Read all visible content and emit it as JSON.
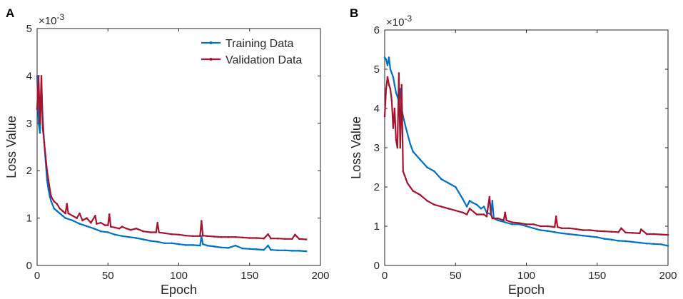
{
  "chart_data": [
    {
      "type": "line",
      "panel_label": "A",
      "xlabel": "Epoch",
      "ylabel": "Loss Value",
      "exponent_label": "×10",
      "exponent_power": "-3",
      "xlim": [
        0,
        200
      ],
      "ylim": [
        0,
        5
      ],
      "xticks": [
        "0",
        "50",
        "100",
        "150",
        "200"
      ],
      "yticks": [
        "0",
        "1",
        "2",
        "3",
        "4",
        "5"
      ],
      "legend": {
        "position": "top-right",
        "entries": [
          "Training Data",
          "Validation Data"
        ]
      },
      "series": [
        {
          "name": "Training Data",
          "color": "#0072BD",
          "x": [
            0,
            1,
            2,
            3,
            4,
            5,
            6,
            7,
            8,
            9,
            10,
            12,
            14,
            16,
            18,
            20,
            25,
            30,
            35,
            40,
            45,
            50,
            55,
            60,
            65,
            70,
            75,
            80,
            85,
            90,
            95,
            100,
            105,
            110,
            115,
            116,
            117,
            120,
            125,
            130,
            135,
            140,
            145,
            150,
            155,
            160,
            163,
            165,
            170,
            175,
            180,
            185,
            190
          ],
          "y": [
            4.0,
            3.0,
            2.8,
            3.8,
            3.1,
            2.6,
            2.2,
            1.8,
            1.6,
            1.45,
            1.35,
            1.2,
            1.15,
            1.1,
            1.05,
            1.0,
            0.95,
            0.88,
            0.83,
            0.78,
            0.72,
            0.7,
            0.65,
            0.62,
            0.6,
            0.58,
            0.55,
            0.52,
            0.5,
            0.47,
            0.47,
            0.45,
            0.43,
            0.43,
            0.42,
            0.62,
            0.45,
            0.42,
            0.4,
            0.38,
            0.37,
            0.42,
            0.36,
            0.35,
            0.34,
            0.33,
            0.42,
            0.33,
            0.32,
            0.32,
            0.31,
            0.31,
            0.3
          ]
        },
        {
          "name": "Validation Data",
          "color": "#A2142F",
          "x": [
            0,
            1,
            2,
            3,
            4,
            5,
            6,
            7,
            8,
            9,
            10,
            12,
            14,
            16,
            18,
            20,
            21,
            22,
            25,
            28,
            30,
            32,
            35,
            38,
            41,
            42,
            45,
            48,
            50,
            51,
            52,
            55,
            58,
            60,
            63,
            66,
            70,
            75,
            80,
            84,
            85,
            86,
            90,
            95,
            100,
            105,
            110,
            115,
            116,
            117,
            120,
            125,
            130,
            135,
            140,
            145,
            150,
            155,
            160,
            163,
            165,
            170,
            175,
            180,
            182,
            185,
            190
          ],
          "y": [
            3.3,
            4.0,
            3.0,
            4.0,
            2.9,
            2.6,
            2.3,
            2.0,
            1.8,
            1.6,
            1.45,
            1.35,
            1.3,
            1.2,
            1.15,
            1.1,
            1.3,
            1.1,
            1.05,
            1.0,
            1.1,
            0.95,
            1.0,
            0.9,
            1.05,
            0.88,
            0.9,
            0.85,
            0.85,
            1.08,
            0.82,
            0.8,
            0.78,
            0.82,
            0.78,
            0.75,
            0.78,
            0.72,
            0.7,
            0.7,
            0.9,
            0.7,
            0.68,
            0.66,
            0.65,
            0.63,
            0.62,
            0.62,
            0.94,
            0.63,
            0.62,
            0.61,
            0.6,
            0.6,
            0.6,
            0.59,
            0.58,
            0.58,
            0.57,
            0.66,
            0.57,
            0.57,
            0.56,
            0.56,
            0.65,
            0.56,
            0.55
          ]
        }
      ]
    },
    {
      "type": "line",
      "panel_label": "B",
      "xlabel": "Epoch",
      "ylabel": "Loss Value",
      "exponent_label": "×10",
      "exponent_power": "-3",
      "xlim": [
        0,
        200
      ],
      "ylim": [
        0,
        6
      ],
      "xticks": [
        "0",
        "50",
        "100",
        "150",
        "200"
      ],
      "yticks": [
        "0",
        "1",
        "2",
        "3",
        "4",
        "5",
        "6"
      ],
      "legend": null,
      "series": [
        {
          "name": "Training Data",
          "color": "#0072BD",
          "x": [
            0,
            1,
            2,
            3,
            4,
            5,
            6,
            7,
            8,
            9,
            10,
            11,
            12,
            13,
            15,
            18,
            20,
            25,
            30,
            35,
            40,
            45,
            50,
            55,
            58,
            60,
            62,
            65,
            68,
            70,
            72,
            75,
            76,
            77,
            80,
            85,
            90,
            95,
            100,
            105,
            110,
            115,
            120,
            125,
            130,
            135,
            140,
            145,
            150,
            155,
            160,
            165,
            170,
            175,
            180,
            185,
            190,
            195,
            200
          ],
          "y": [
            5.3,
            5.25,
            5.1,
            5.3,
            5.0,
            4.9,
            4.8,
            4.6,
            4.4,
            4.3,
            4.2,
            4.5,
            4.0,
            3.8,
            3.5,
            3.1,
            2.9,
            2.7,
            2.5,
            2.4,
            2.2,
            2.1,
            2.0,
            1.7,
            1.5,
            1.65,
            1.6,
            1.55,
            1.45,
            1.5,
            1.35,
            1.3,
            1.65,
            1.2,
            1.15,
            1.1,
            1.05,
            1.05,
            1.0,
            0.95,
            0.9,
            0.88,
            0.85,
            0.82,
            0.8,
            0.78,
            0.76,
            0.74,
            0.72,
            0.68,
            0.66,
            0.63,
            0.62,
            0.6,
            0.58,
            0.56,
            0.55,
            0.54,
            0.5
          ]
        },
        {
          "name": "Validation Data",
          "color": "#A2142F",
          "x": [
            0,
            1,
            2,
            3,
            4,
            5,
            6,
            7,
            8,
            9,
            10,
            11,
            12,
            13,
            14,
            15,
            16,
            18,
            20,
            25,
            30,
            35,
            40,
            45,
            50,
            55,
            58,
            60,
            65,
            70,
            72,
            74,
            75,
            76,
            80,
            84,
            85,
            86,
            90,
            95,
            100,
            105,
            110,
            115,
            120,
            121,
            122,
            125,
            130,
            135,
            140,
            145,
            150,
            155,
            160,
            165,
            167,
            170,
            175,
            180,
            181,
            185,
            190,
            195,
            200
          ],
          "y": [
            3.8,
            4.5,
            4.8,
            4.6,
            4.5,
            4.2,
            3.5,
            4.0,
            3.2,
            3.0,
            4.9,
            3.0,
            4.6,
            2.4,
            2.3,
            2.2,
            2.1,
            2.0,
            1.9,
            1.8,
            1.65,
            1.55,
            1.5,
            1.45,
            1.4,
            1.35,
            1.3,
            1.45,
            1.3,
            1.3,
            1.25,
            1.75,
            1.3,
            1.2,
            1.2,
            1.15,
            1.35,
            1.15,
            1.1,
            1.08,
            1.05,
            1.05,
            1.0,
            1.0,
            0.98,
            1.25,
            0.98,
            0.95,
            0.95,
            0.93,
            0.9,
            0.9,
            0.88,
            0.87,
            0.86,
            0.85,
            0.95,
            0.84,
            0.83,
            0.82,
            0.92,
            0.8,
            0.8,
            0.79,
            0.78
          ]
        }
      ]
    }
  ]
}
